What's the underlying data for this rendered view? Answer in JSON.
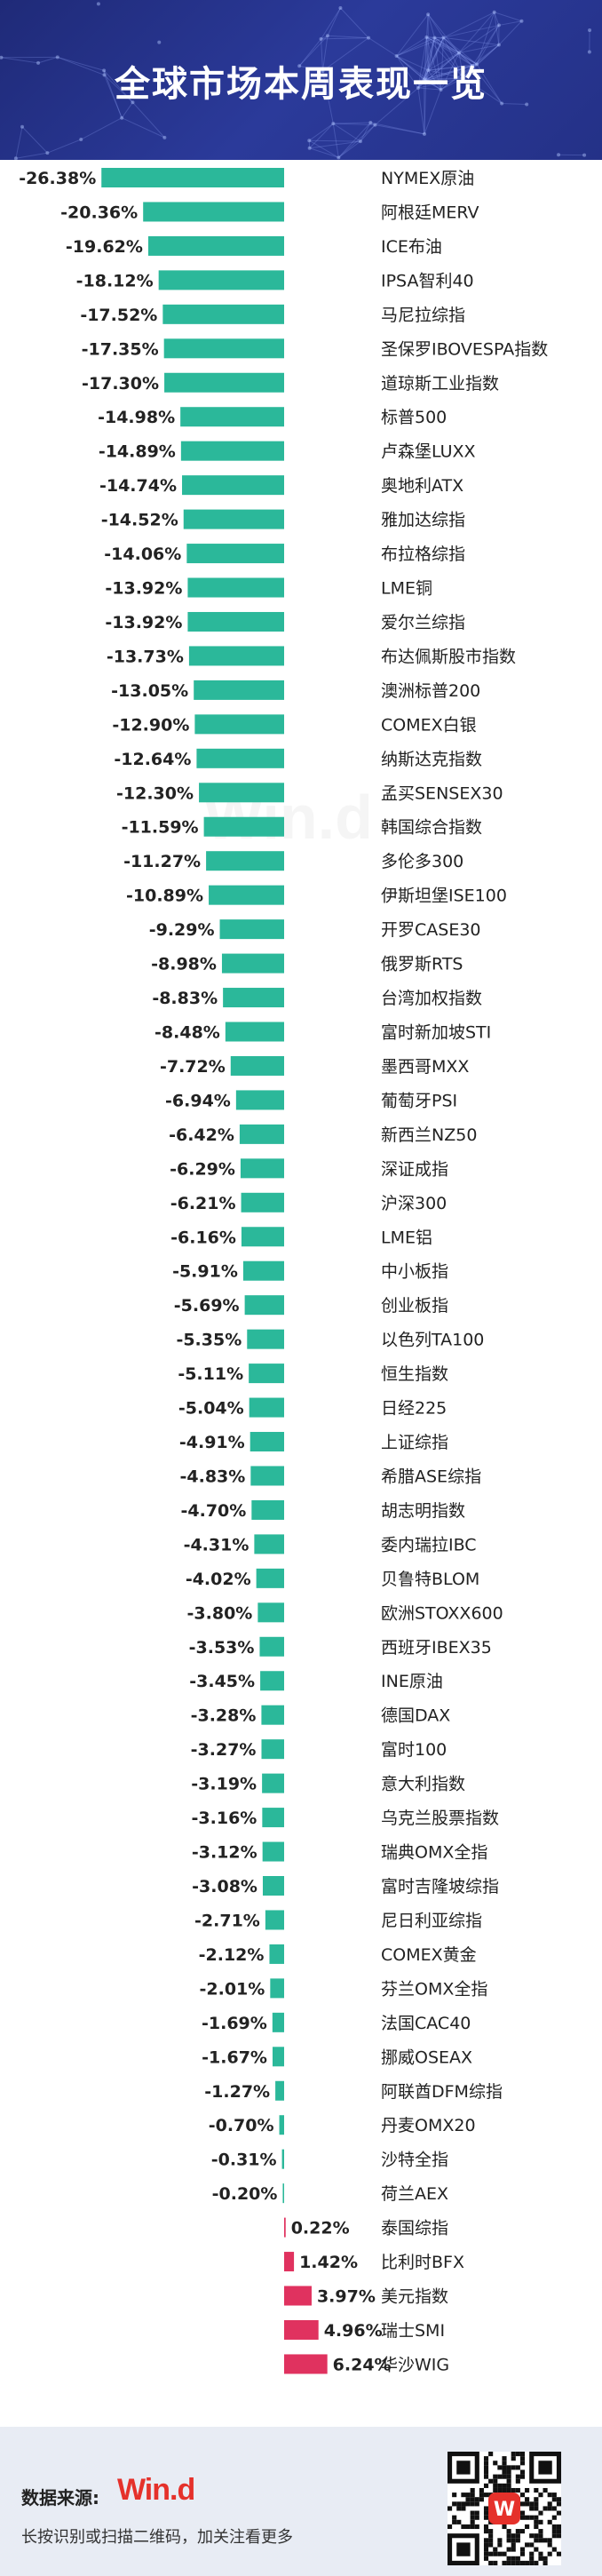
{
  "header": {
    "title": "全球市场本周表现一览"
  },
  "footer": {
    "source_label": "数据来源:",
    "logo_text": "Win.d",
    "note": "长按识别或扫描二维码，加关注看更多",
    "qr_badge": "W"
  },
  "colors": {
    "header_bg": "#2b3a9a",
    "bar_negative": "#2bb89a",
    "bar_positive": "#e0325f",
    "footer_bg": "#e8ecf4",
    "logo_red": "#e5312b"
  },
  "chart_data": {
    "type": "bar",
    "orientation": "horizontal",
    "unit": "%",
    "xlim": [
      -26.38,
      6.24
    ],
    "categories": [
      "NYMEX原油",
      "阿根廷MERV",
      "ICE布油",
      "IPSA智利40",
      "马尼拉综指",
      "圣保罗IBOVESPA指数",
      "道琼斯工业指数",
      "标普500",
      "卢森堡LUXX",
      "奥地利ATX",
      "雅加达综指",
      "布拉格综指",
      "LME铜",
      "爱尔兰综指",
      "布达佩斯股市指数",
      "澳洲标普200",
      "COMEX白银",
      "纳斯达克指数",
      "孟买SENSEX30",
      "韩国综合指数",
      "多伦多300",
      "伊斯坦堡ISE100",
      "开罗CASE30",
      "俄罗斯RTS",
      "台湾加权指数",
      "富时新加坡STI",
      "墨西哥MXX",
      "葡萄牙PSI",
      "新西兰NZ50",
      "深证成指",
      "沪深300",
      "LME铝",
      "中小板指",
      "创业板指",
      "以色列TA100",
      "恒生指数",
      "日经225",
      "上证综指",
      "希腊ASE综指",
      "胡志明指数",
      "委内瑞拉IBC",
      "贝鲁特BLOM",
      "欧洲STOXX600",
      "西班牙IBEX35",
      "INE原油",
      "德国DAX",
      "富时100",
      "意大利指数",
      "乌克兰股票指数",
      "瑞典OMX全指",
      "富时吉隆坡综指",
      "尼日利亚综指",
      "COMEX黄金",
      "芬兰OMX全指",
      "法国CAC40",
      "挪威OSEAX",
      "阿联酋DFM综指",
      "丹麦OMX20",
      "沙特全指",
      "荷兰AEX",
      "泰国综指",
      "比利时BFX",
      "美元指数",
      "瑞士SMI",
      "华沙WIG"
    ],
    "values": [
      -26.38,
      -20.36,
      -19.62,
      -18.12,
      -17.52,
      -17.35,
      -17.3,
      -14.98,
      -14.89,
      -14.74,
      -14.52,
      -14.06,
      -13.92,
      -13.92,
      -13.73,
      -13.05,
      -12.9,
      -12.64,
      -12.3,
      -11.59,
      -11.27,
      -10.89,
      -9.29,
      -8.98,
      -8.83,
      -8.48,
      -7.72,
      -6.94,
      -6.42,
      -6.29,
      -6.21,
      -6.16,
      -5.91,
      -5.69,
      -5.35,
      -5.11,
      -5.04,
      -4.91,
      -4.83,
      -4.7,
      -4.31,
      -4.02,
      -3.8,
      -3.53,
      -3.45,
      -3.28,
      -3.27,
      -3.19,
      -3.16,
      -3.12,
      -3.08,
      -2.71,
      -2.12,
      -2.01,
      -1.69,
      -1.67,
      -1.27,
      -0.7,
      -0.31,
      -0.2,
      0.22,
      1.42,
      3.97,
      4.96,
      6.24
    ],
    "labels": [
      "-26.38%",
      "-20.36%",
      "-19.62%",
      "-18.12%",
      "-17.52%",
      "-17.35%",
      "-17.30%",
      "-14.98%",
      "-14.89%",
      "-14.74%",
      "-14.52%",
      "-14.06%",
      "-13.92%",
      "-13.92%",
      "-13.73%",
      "-13.05%",
      "-12.90%",
      "-12.64%",
      "-12.30%",
      "-11.59%",
      "-11.27%",
      "-10.89%",
      "-9.29%",
      "-8.98%",
      "-8.83%",
      "-8.48%",
      "-7.72%",
      "-6.94%",
      "-6.42%",
      "-6.29%",
      "-6.21%",
      "-6.16%",
      "-5.91%",
      "-5.69%",
      "-5.35%",
      "-5.11%",
      "-5.04%",
      "-4.91%",
      "-4.83%",
      "-4.70%",
      "-4.31%",
      "-4.02%",
      "-3.80%",
      "-3.53%",
      "-3.45%",
      "-3.28%",
      "-3.27%",
      "-3.19%",
      "-3.16%",
      "-3.12%",
      "-3.08%",
      "-2.71%",
      "-2.12%",
      "-2.01%",
      "-1.69%",
      "-1.67%",
      "-1.27%",
      "-0.70%",
      "-0.31%",
      "-0.20%",
      "0.22%",
      "1.42%",
      "3.97%",
      "4.96%",
      "6.24%"
    ],
    "title": "",
    "xlabel": "",
    "ylabel": "",
    "grid": false,
    "legend": "none"
  }
}
